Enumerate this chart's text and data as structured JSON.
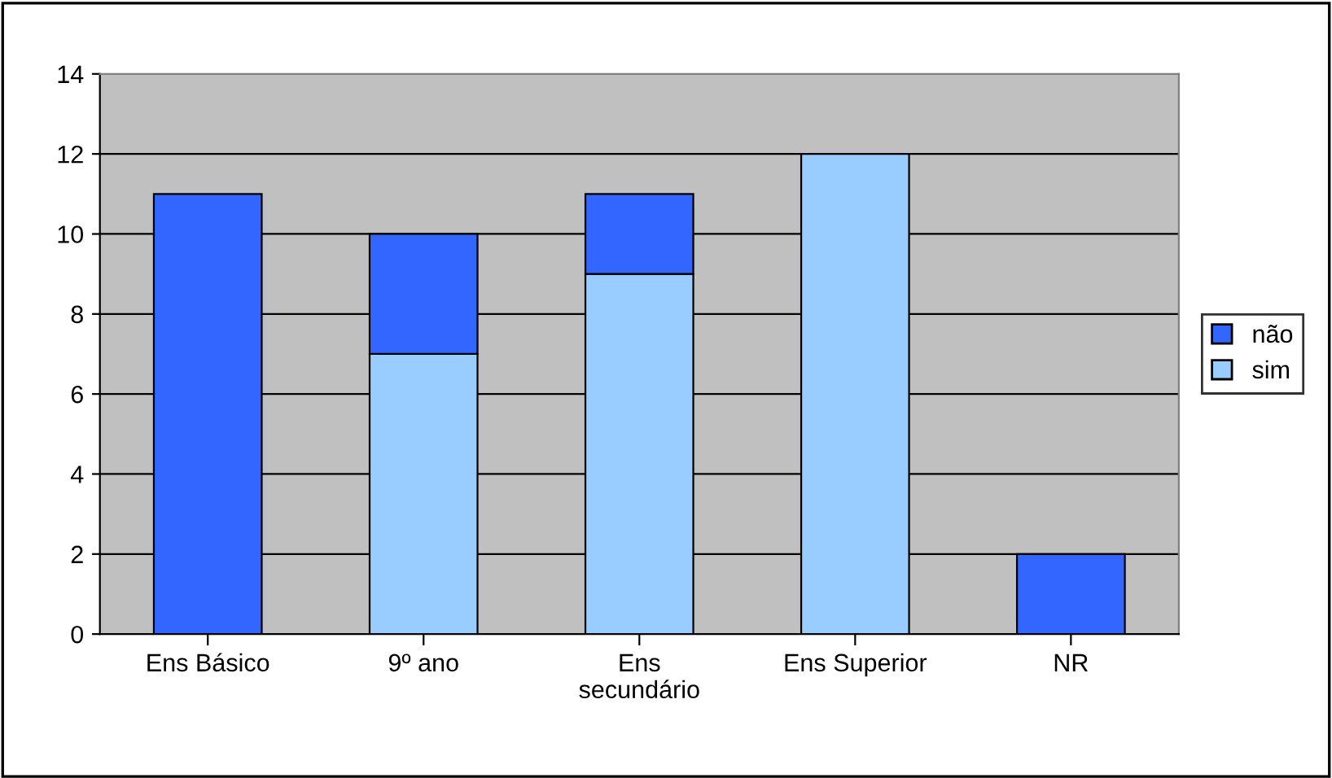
{
  "chart_data": {
    "type": "bar",
    "stacked": true,
    "categories": [
      "Ens Básico",
      "9º ano",
      "Ens\nsecundário",
      "Ens Superior",
      "NR"
    ],
    "series": [
      {
        "name": "sim",
        "color": "#99ccff",
        "values": [
          null,
          7,
          9,
          12,
          null
        ]
      },
      {
        "name": "não",
        "color": "#3366ff",
        "values": [
          11,
          3,
          2,
          null,
          2
        ]
      }
    ],
    "ylim": [
      0,
      14
    ],
    "yticks": [
      0,
      2,
      4,
      6,
      8,
      10,
      12,
      14
    ],
    "grid": "y",
    "legend": "right"
  }
}
